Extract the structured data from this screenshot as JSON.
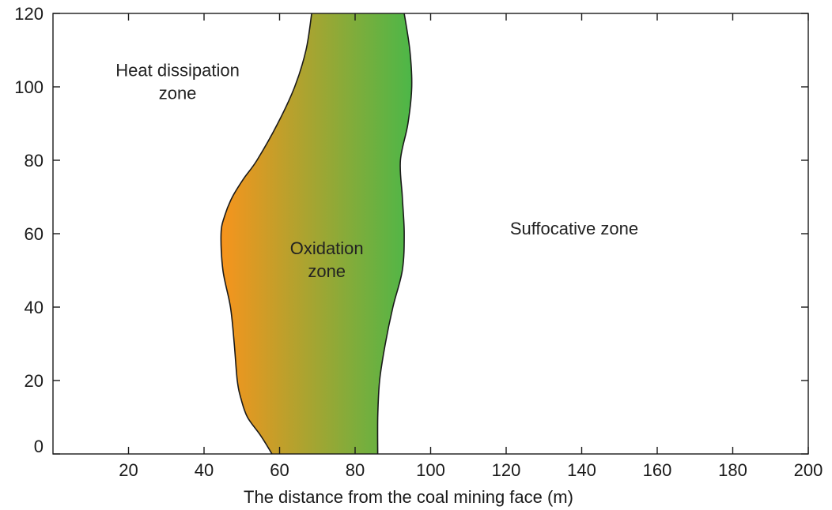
{
  "chart_data": {
    "type": "area",
    "xlabel": "The distance from the coal mining face (m)",
    "ylabel": "",
    "xlim": [
      0,
      200
    ],
    "ylim": [
      0,
      120
    ],
    "x_ticks": [
      20,
      40,
      60,
      80,
      100,
      120,
      140,
      160,
      180,
      200
    ],
    "y_ticks": [
      0,
      20,
      40,
      60,
      80,
      100,
      120
    ],
    "grid": false,
    "gradient": {
      "left_color": "#f7941d",
      "right_color": "#4cb748"
    },
    "oxidation_zone": {
      "left_boundary": [
        {
          "y": 0,
          "x": 58
        },
        {
          "y": 5,
          "x": 55
        },
        {
          "y": 10,
          "x": 51.5
        },
        {
          "y": 15,
          "x": 49.8
        },
        {
          "y": 20,
          "x": 48.8
        },
        {
          "y": 30,
          "x": 48
        },
        {
          "y": 40,
          "x": 47
        },
        {
          "y": 50,
          "x": 45
        },
        {
          "y": 60,
          "x": 44.5
        },
        {
          "y": 65,
          "x": 45.5
        },
        {
          "y": 70,
          "x": 47.5
        },
        {
          "y": 75,
          "x": 50.5
        },
        {
          "y": 80,
          "x": 54
        },
        {
          "y": 90,
          "x": 59.5
        },
        {
          "y": 100,
          "x": 64
        },
        {
          "y": 110,
          "x": 67
        },
        {
          "y": 120,
          "x": 68.5
        }
      ],
      "right_boundary": [
        {
          "y": 0,
          "x": 86
        },
        {
          "y": 10,
          "x": 86
        },
        {
          "y": 20,
          "x": 86.5
        },
        {
          "y": 30,
          "x": 88
        },
        {
          "y": 40,
          "x": 90
        },
        {
          "y": 50,
          "x": 92.5
        },
        {
          "y": 60,
          "x": 93
        },
        {
          "y": 70,
          "x": 92.5
        },
        {
          "y": 80,
          "x": 92
        },
        {
          "y": 90,
          "x": 94
        },
        {
          "y": 100,
          "x": 95
        },
        {
          "y": 110,
          "x": 94.5
        },
        {
          "y": 120,
          "x": 93
        }
      ]
    },
    "annotations": [
      {
        "lines": [
          "Heat dissipation",
          "zone"
        ],
        "x": 33,
        "y": 101.5
      },
      {
        "lines": [
          "Oxidation",
          "zone"
        ],
        "x": 72.5,
        "y": 53
      },
      {
        "lines": [
          "Suffocative zone"
        ],
        "x": 138,
        "y": 61.5
      }
    ]
  }
}
